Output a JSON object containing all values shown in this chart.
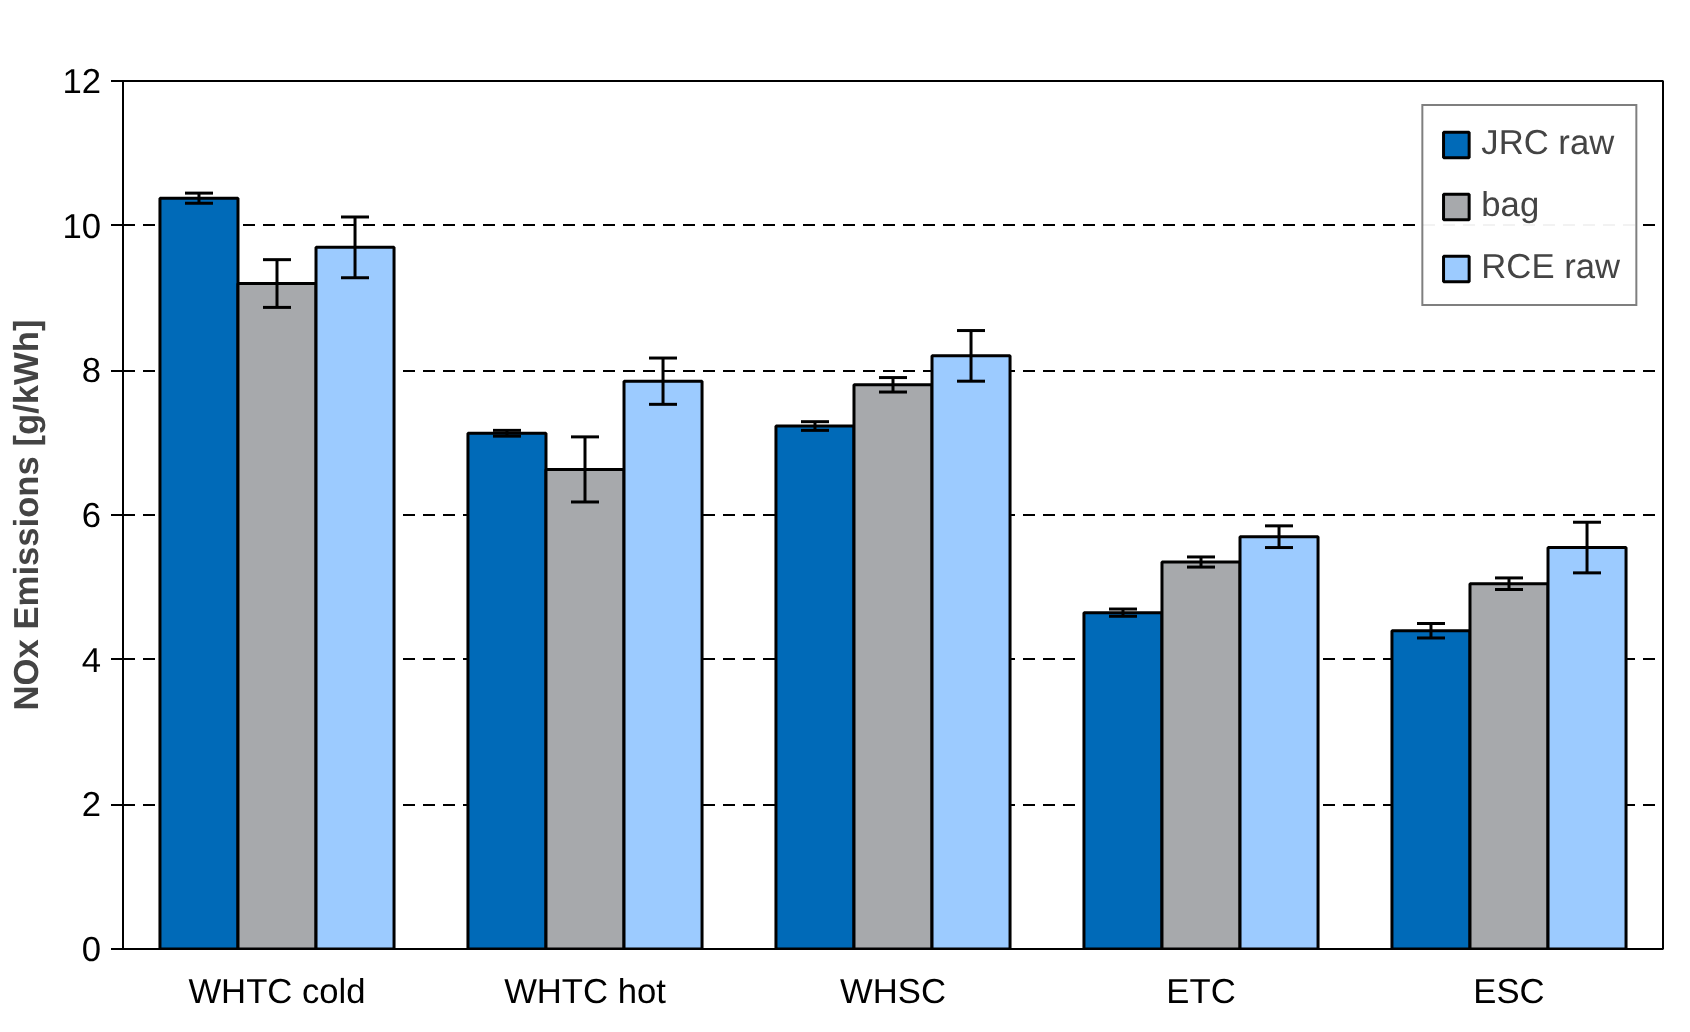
{
  "chart_data": {
    "type": "bar",
    "ylabel": "NOx Emissions [g/kWh]",
    "categories": [
      "WHTC cold",
      "WHTC hot",
      "WHSC",
      "ETC",
      "ESC"
    ],
    "series": [
      {
        "name": "JRC raw",
        "color": "#006ab8",
        "values": [
          10.38,
          7.13,
          7.23,
          4.65,
          4.4
        ],
        "errors": [
          0.07,
          0.04,
          0.06,
          0.05,
          0.1
        ]
      },
      {
        "name": "bag",
        "color": "#a7a9ac",
        "values": [
          9.2,
          6.63,
          7.8,
          5.35,
          5.05
        ],
        "errors": [
          0.33,
          0.45,
          0.1,
          0.07,
          0.08
        ]
      },
      {
        "name": "RCE raw",
        "color": "#9ccbff",
        "values": [
          9.7,
          7.85,
          8.2,
          5.7,
          5.55
        ],
        "errors": [
          0.42,
          0.32,
          0.35,
          0.15,
          0.35
        ]
      }
    ],
    "ylim": [
      0,
      12
    ],
    "yticks": [
      0,
      2,
      4,
      6,
      8,
      10,
      12
    ],
    "grid": "y",
    "legend": "top right"
  }
}
